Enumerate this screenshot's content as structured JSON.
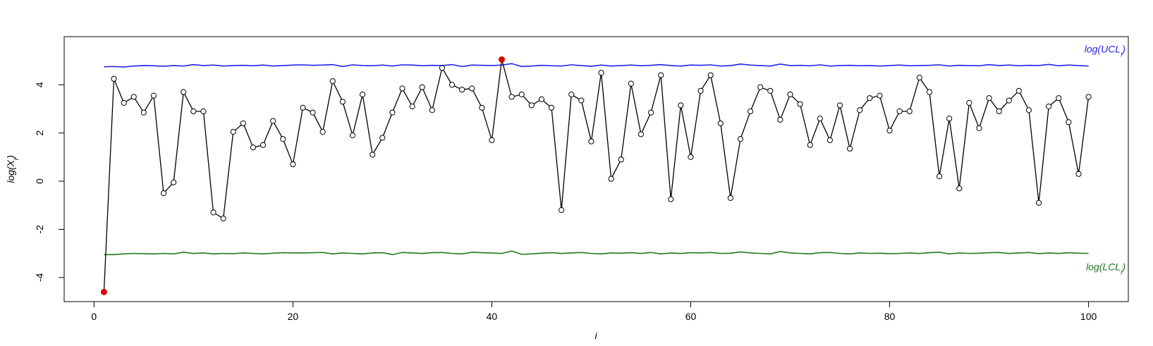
{
  "chart_data": {
    "type": "line",
    "title": "",
    "xlabel": "i",
    "ylabel": "log(X_i)",
    "xlim": [
      -3,
      104
    ],
    "ylim": [
      -5,
      6
    ],
    "x_ticks": [
      0,
      20,
      40,
      60,
      80,
      100
    ],
    "y_ticks": [
      -4,
      -2,
      0,
      2,
      4
    ],
    "x_tick_labels": [
      "0",
      "20",
      "40",
      "60",
      "80",
      "100"
    ],
    "y_tick_labels": [
      "-4",
      "-2",
      "0",
      "2",
      "4"
    ],
    "grid": false,
    "colors": {
      "ucl": "#2222ee",
      "lcl": "#227722",
      "series": "#000000",
      "out_of_control": "#dd0000"
    },
    "series": [
      {
        "name": "",
        "values": [
          -4.6,
          4.25,
          3.25,
          3.5,
          2.85,
          3.55,
          -0.5,
          -0.05,
          3.7,
          2.9,
          2.9,
          -1.3,
          -1.55,
          2.05,
          2.4,
          1.4,
          1.5,
          2.5,
          1.75,
          0.7,
          3.05,
          2.85,
          2.05,
          4.15,
          3.3,
          1.9,
          3.6,
          1.1,
          1.8,
          2.85,
          3.85,
          3.1,
          3.9,
          2.95,
          4.7,
          4.0,
          3.8,
          3.85,
          3.05,
          1.7,
          5.05,
          3.5,
          3.6,
          3.15,
          3.4,
          3.05,
          -1.2,
          3.6,
          3.35,
          1.65,
          4.5,
          0.1,
          0.9,
          4.05,
          1.95,
          2.85,
          4.4,
          -0.75,
          3.15,
          1.0,
          3.75,
          4.4,
          2.4,
          -0.7,
          1.75,
          2.9,
          3.9,
          3.75,
          2.55,
          3.6,
          3.2,
          1.5,
          2.6,
          1.7,
          3.15,
          1.35,
          2.95,
          3.45,
          3.55,
          2.1,
          2.9,
          2.9,
          4.3,
          3.7,
          0.2,
          2.6,
          -0.3,
          3.25,
          2.2,
          3.45,
          2.9,
          3.35,
          3.75,
          2.95,
          -0.9,
          3.1,
          3.45,
          2.45,
          0.3,
          3.5
        ]
      },
      {
        "name": "log(UCL_i)",
        "values": [
          4.75,
          4.76,
          4.74,
          4.78,
          4.8,
          4.79,
          4.77,
          4.8,
          4.78,
          4.84,
          4.8,
          4.82,
          4.78,
          4.8,
          4.81,
          4.79,
          4.82,
          4.78,
          4.8,
          4.82,
          4.83,
          4.81,
          4.82,
          4.84,
          4.76,
          4.83,
          4.8,
          4.79,
          4.82,
          4.78,
          4.83,
          4.82,
          4.79,
          4.81,
          4.8,
          4.84,
          4.76,
          4.82,
          4.81,
          4.8,
          4.82,
          4.88,
          4.76,
          4.78,
          4.81,
          4.79,
          4.78,
          4.83,
          4.8,
          4.77,
          4.82,
          4.78,
          4.8,
          4.82,
          4.79,
          4.81,
          4.84,
          4.8,
          4.78,
          4.82,
          4.81,
          4.83,
          4.78,
          4.8,
          4.86,
          4.82,
          4.8,
          4.78,
          4.86,
          4.8,
          4.81,
          4.79,
          4.83,
          4.78,
          4.8,
          4.81,
          4.79,
          4.8,
          4.78,
          4.8,
          4.82,
          4.79,
          4.8,
          4.81,
          4.83,
          4.78,
          4.81,
          4.8,
          4.79,
          4.84,
          4.8,
          4.82,
          4.79,
          4.81,
          4.8,
          4.85,
          4.79,
          4.82,
          4.8,
          4.78
        ]
      },
      {
        "name": "log(LCL_i)",
        "values": [
          -3.05,
          -3.05,
          -3.02,
          -3.0,
          -3.01,
          -3.02,
          -3.0,
          -3.02,
          -2.95,
          -3.0,
          -2.98,
          -3.02,
          -3.0,
          -3.01,
          -2.98,
          -3.0,
          -3.02,
          -2.99,
          -2.97,
          -2.98,
          -2.98,
          -2.97,
          -2.96,
          -3.02,
          -2.98,
          -3.0,
          -3.02,
          -2.98,
          -2.97,
          -3.05,
          -2.96,
          -2.98,
          -3.0,
          -2.97,
          -2.96,
          -3.0,
          -3.02,
          -2.95,
          -2.97,
          -2.98,
          -3.0,
          -2.9,
          -3.04,
          -3.02,
          -2.99,
          -2.97,
          -3.0,
          -2.98,
          -2.96,
          -3.0,
          -3.02,
          -2.98,
          -2.99,
          -2.97,
          -3.0,
          -2.96,
          -3.02,
          -2.98,
          -3.0,
          -2.97,
          -2.98,
          -2.96,
          -3.0,
          -2.99,
          -2.94,
          -2.98,
          -3.0,
          -3.02,
          -2.92,
          -2.98,
          -3.0,
          -3.02,
          -2.97,
          -2.96,
          -3.0,
          -3.02,
          -2.98,
          -3.0,
          -2.99,
          -3.01,
          -3.0,
          -2.98,
          -3.0,
          -2.97,
          -2.95,
          -3.02,
          -2.98,
          -3.0,
          -2.99,
          -2.97,
          -2.96,
          -3.0,
          -2.98,
          -2.96,
          -3.01,
          -2.98,
          -3.0,
          -2.97,
          -2.99,
          -3.0
        ]
      }
    ],
    "x": [
      1,
      2,
      3,
      4,
      5,
      6,
      7,
      8,
      9,
      10,
      11,
      12,
      13,
      14,
      15,
      16,
      17,
      18,
      19,
      20,
      21,
      22,
      23,
      24,
      25,
      26,
      27,
      28,
      29,
      30,
      31,
      32,
      33,
      34,
      35,
      36,
      37,
      38,
      39,
      40,
      41,
      42,
      43,
      44,
      45,
      46,
      47,
      48,
      49,
      50,
      51,
      52,
      53,
      54,
      55,
      56,
      57,
      58,
      59,
      60,
      61,
      62,
      63,
      64,
      65,
      66,
      67,
      68,
      69,
      70,
      71,
      72,
      73,
      74,
      75,
      76,
      77,
      78,
      79,
      80,
      81,
      82,
      83,
      84,
      85,
      86,
      87,
      88,
      89,
      90,
      91,
      92,
      93,
      94,
      95,
      96,
      97,
      98,
      99,
      100
    ],
    "out_of_control_points": [
      {
        "x": 1,
        "y": -4.6
      },
      {
        "x": 41,
        "y": 5.05
      }
    ],
    "annotations": {
      "ucl_label": "log(UCL",
      "ucl_sub": "i",
      "lcl_label": "log(LCL",
      "lcl_sub": "i",
      "label_close": ")"
    },
    "ylabel_parts": {
      "main": "log(X",
      "sub": "i",
      "close": ")"
    }
  }
}
